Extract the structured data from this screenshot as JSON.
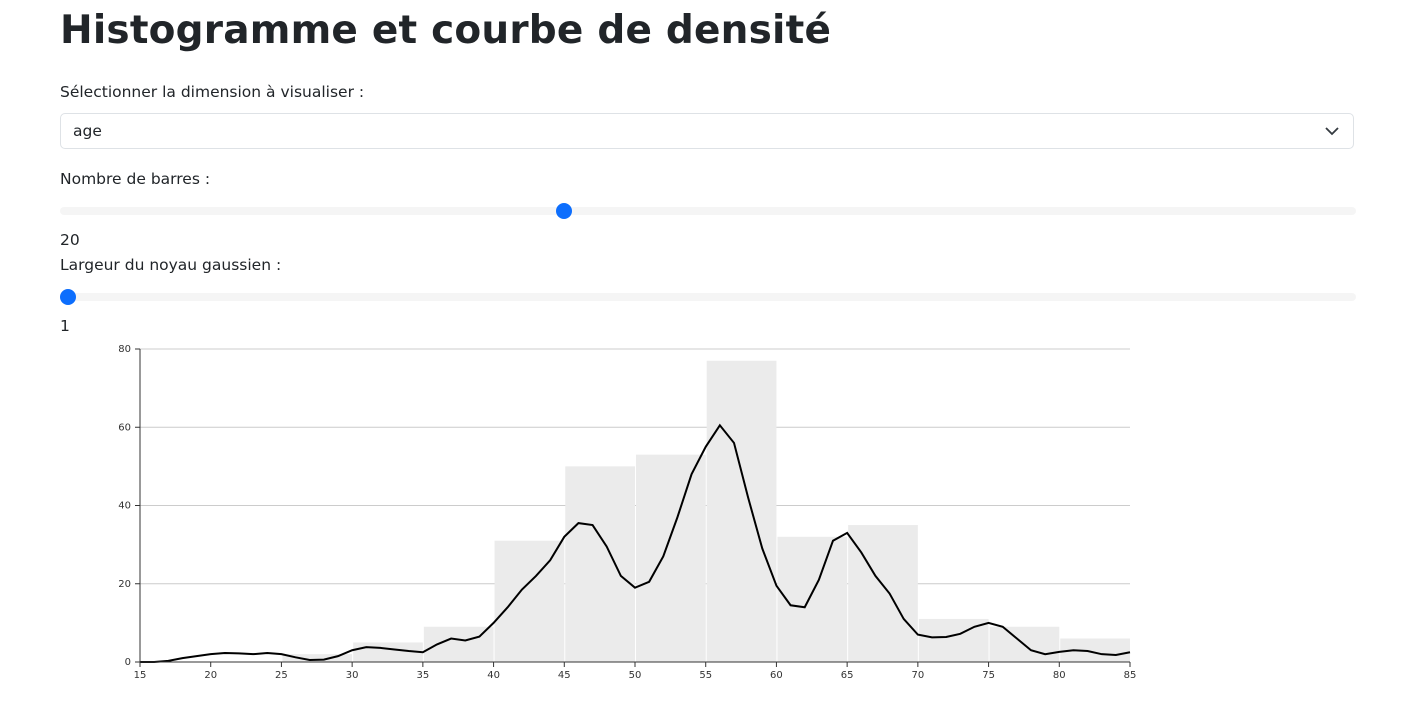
{
  "title": "Histogramme et courbe de densité",
  "controls": {
    "dimension": {
      "label": "Sélectionner la dimension à visualiser :",
      "value": "age"
    },
    "bars": {
      "label": "Nombre de barres :",
      "value": 20
    },
    "bandwidth": {
      "label": "Largeur du noyau gaussien :",
      "value": 1
    }
  },
  "chart_data": {
    "type": "histogram",
    "bins": [
      15,
      20,
      25,
      30,
      35,
      40,
      45,
      50,
      55,
      60,
      65,
      70,
      75,
      80,
      85
    ],
    "counts": [
      0,
      0,
      2,
      5,
      9,
      31,
      50,
      53,
      77,
      32,
      35,
      11,
      9,
      6
    ],
    "color": "#ebebeb",
    "density": {
      "color": "#000000",
      "x": [
        15,
        16,
        17,
        18,
        19,
        20,
        21,
        22,
        23,
        24,
        25,
        26,
        27,
        28,
        29,
        30,
        31,
        32,
        33,
        34,
        35,
        36,
        37,
        38,
        39,
        40,
        41,
        42,
        43,
        44,
        45,
        46,
        47,
        48,
        49,
        50,
        51,
        52,
        53,
        54,
        55,
        56,
        57,
        58,
        59,
        60,
        61,
        62,
        63,
        64,
        65,
        66,
        67,
        68,
        69,
        70,
        71,
        72,
        73,
        74,
        75,
        76,
        77,
        78,
        79,
        80,
        81,
        82,
        83,
        84,
        85
      ],
      "values": [
        0,
        0,
        0.3,
        1,
        1.5,
        2,
        2.3,
        2.2,
        2,
        2.3,
        2,
        1.2,
        0.5,
        0.6,
        1.5,
        3,
        3.8,
        3.6,
        3.2,
        2.8,
        2.5,
        4.5,
        6,
        5.5,
        6.5,
        10,
        14,
        18.5,
        22,
        26,
        32,
        35.5,
        35,
        29.5,
        22,
        19,
        20.5,
        27,
        37,
        48,
        55,
        60.5,
        56,
        42,
        29,
        19.5,
        14.5,
        14,
        21,
        31,
        33,
        28,
        22,
        17.5,
        11,
        7,
        6.3,
        6.4,
        7.2,
        9,
        10,
        9,
        6,
        3,
        2,
        2.6,
        3,
        2.8,
        2,
        1.8,
        2.5
      ]
    },
    "xlim": [
      15,
      85
    ],
    "ylim": [
      0,
      80
    ],
    "xticks": [
      15,
      20,
      25,
      30,
      35,
      40,
      45,
      50,
      55,
      60,
      65,
      70,
      75,
      80,
      85
    ],
    "yticks": [
      0,
      20,
      40,
      60,
      80
    ],
    "grid": true
  }
}
